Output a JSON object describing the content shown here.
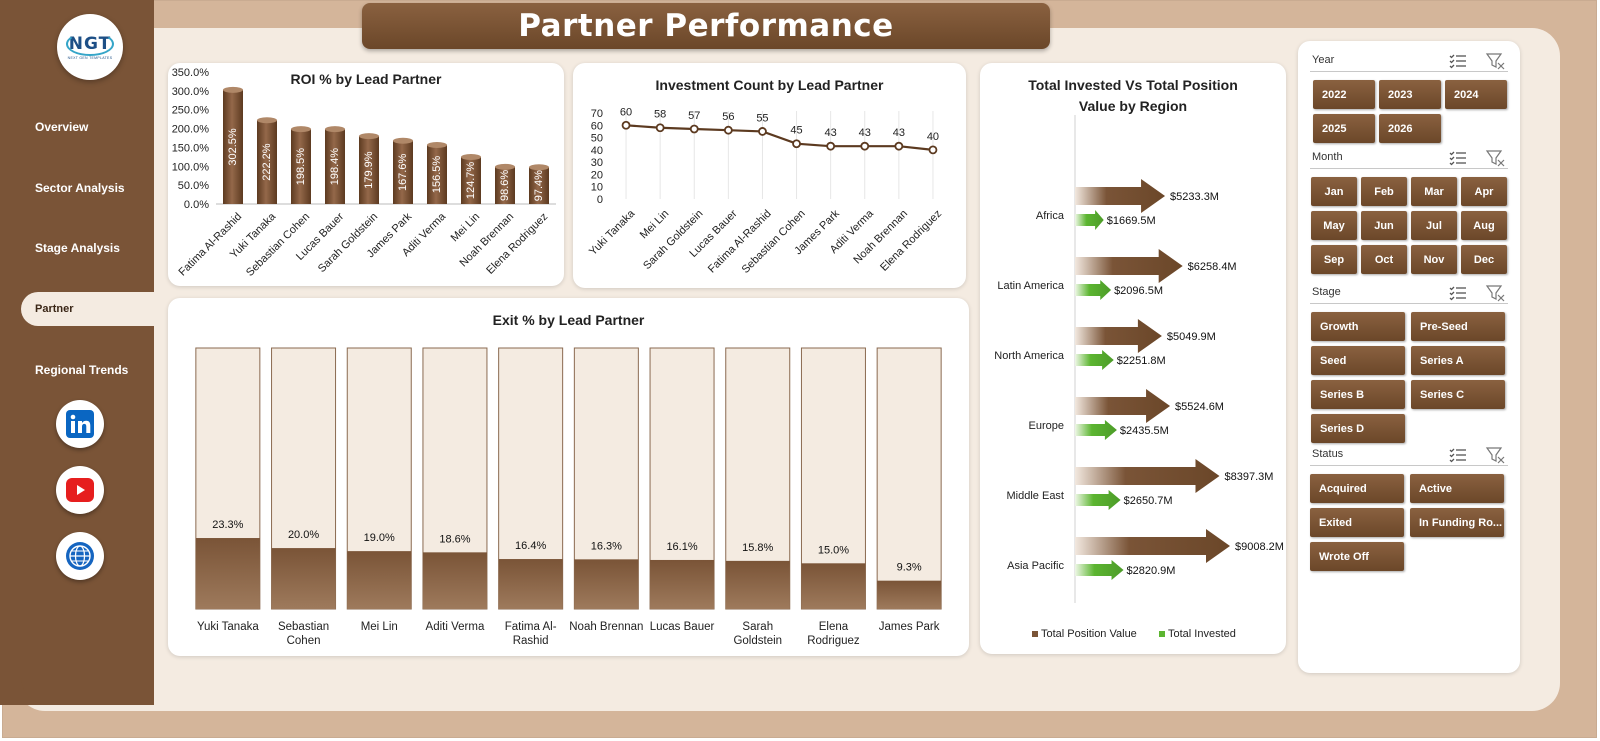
{
  "header": {
    "title": "Partner Performance"
  },
  "logo": {
    "mark": "NGT",
    "subtitle": "NEXT GEN TEMPLATES"
  },
  "nav": [
    {
      "label": "Overview",
      "active": false
    },
    {
      "label": "Sector Analysis",
      "active": false
    },
    {
      "label": "Stage Analysis",
      "active": false
    },
    {
      "label": "Partner",
      "active": true
    },
    {
      "label": "Regional Trends",
      "active": false
    }
  ],
  "social": [
    "linkedin-icon",
    "youtube-icon",
    "web-globe-icon"
  ],
  "colors": {
    "brown": "#7a5437",
    "dark_brown": "#5c3a20",
    "green": "#5cb531",
    "card_bg": "#f4ebe1"
  },
  "charts": {
    "roi": {
      "title": "ROI % by Lead Partner",
      "type": "bar",
      "categories": [
        "Fatima Al-Rashid",
        "Yuki Tanaka",
        "Sebastian Cohen",
        "Lucas Bauer",
        "Sarah Goldstein",
        "James Park",
        "Aditi Verma",
        "Mei Lin",
        "Noah Brennan",
        "Elena Rodriguez"
      ],
      "values": [
        302.5,
        222.2,
        198.5,
        198.4,
        179.9,
        167.6,
        156.5,
        124.7,
        98.6,
        97.4
      ],
      "labels": [
        "302.5%",
        "222.2%",
        "198.5%",
        "198.4%",
        "179.9%",
        "167.6%",
        "156.5%",
        "124.7%",
        "98.6%",
        "97.4%"
      ],
      "yticks": [
        "350.0%",
        "300.0%",
        "250.0%",
        "200.0%",
        "150.0%",
        "100.0%",
        "50.0%",
        "0.0%"
      ],
      "ylim": [
        0,
        350
      ]
    },
    "investment_count": {
      "title": "Investment Count  by Lead Partner",
      "type": "line",
      "categories": [
        "Yuki Tanaka",
        "Mei Lin",
        "Sarah Goldstein",
        "Lucas Bauer",
        "Fatima Al-Rashid",
        "Sebastian Cohen",
        "James Park",
        "Aditi Verma",
        "Noah Brennan",
        "Elena Rodriguez"
      ],
      "values": [
        60,
        58,
        57,
        56,
        55,
        45,
        43,
        43,
        43,
        40
      ],
      "yticks": [
        "70",
        "60",
        "50",
        "40",
        "30",
        "20",
        "10",
        "0"
      ],
      "ylim": [
        0,
        70
      ]
    },
    "exit": {
      "title": "Exit % by Lead Partner",
      "type": "bar",
      "categories": [
        "Yuki Tanaka",
        "Sebastian Cohen",
        "Mei Lin",
        "Aditi Verma",
        "Fatima Al-Rashid",
        "Noah Brennan",
        "Lucas Bauer",
        "Sarah Goldstein",
        "Elena Rodriguez",
        "James Park"
      ],
      "category_lines": [
        [
          "Yuki Tanaka"
        ],
        [
          "Sebastian",
          "Cohen"
        ],
        [
          "Mei Lin"
        ],
        [
          "Aditi Verma"
        ],
        [
          "Fatima Al-",
          "Rashid"
        ],
        [
          "Noah Brennan"
        ],
        [
          "Lucas Bauer"
        ],
        [
          "Sarah",
          "Goldstein"
        ],
        [
          "Elena",
          "Rodriguez"
        ],
        [
          "James Park"
        ]
      ],
      "values": [
        23.3,
        20.0,
        19.0,
        18.6,
        16.4,
        16.3,
        16.1,
        15.8,
        15.0,
        9.3
      ],
      "labels": [
        "23.3%",
        "20.0%",
        "19.0%",
        "18.6%",
        "16.4%",
        "16.3%",
        "16.1%",
        "15.8%",
        "15.0%",
        "9.3%"
      ]
    },
    "region": {
      "title_lines": [
        "Total Invested Vs Total Position",
        "Value by Region"
      ],
      "type": "bar",
      "categories": [
        "Africa",
        "Latin America",
        "North America",
        "Europe",
        "Middle East",
        "Asia Pacific"
      ],
      "series": [
        {
          "name": "Total Position Value",
          "values": [
            5233.3,
            6258.4,
            5049.9,
            5524.6,
            8397.3,
            9008.2
          ],
          "labels": [
            "$5233.3M",
            "$6258.4M",
            "$5049.9M",
            "$5524.6M",
            "$8397.3M",
            "$9008.2M"
          ],
          "color": "#7a5437"
        },
        {
          "name": "Total Invested",
          "values": [
            1669.5,
            2096.5,
            2251.8,
            2435.5,
            2650.7,
            2820.9
          ],
          "labels": [
            "$1669.5M",
            "$2096.5M",
            "$2251.8M",
            "$2435.5M",
            "$2650.7M",
            "$2820.9M"
          ],
          "color": "#5cb531"
        }
      ],
      "legend": [
        "Total Position Value",
        "Total Invested"
      ]
    }
  },
  "slicers": {
    "year": {
      "title": "Year",
      "items": [
        "2022",
        "2023",
        "2024",
        "2025",
        "2026"
      ]
    },
    "month": {
      "title": "Month",
      "items": [
        "Jan",
        "Feb",
        "Mar",
        "Apr",
        "May",
        "Jun",
        "Jul",
        "Aug",
        "Sep",
        "Oct",
        "Nov",
        "Dec"
      ]
    },
    "stage": {
      "title": "Stage",
      "items": [
        "Growth",
        "Pre-Seed",
        "Seed",
        "Series A",
        "Series B",
        "Series C",
        "Series D"
      ]
    },
    "status": {
      "title": "Status",
      "items": [
        "Acquired",
        "Active",
        "Exited",
        "In Funding Ro...",
        "Wrote Off"
      ]
    }
  }
}
